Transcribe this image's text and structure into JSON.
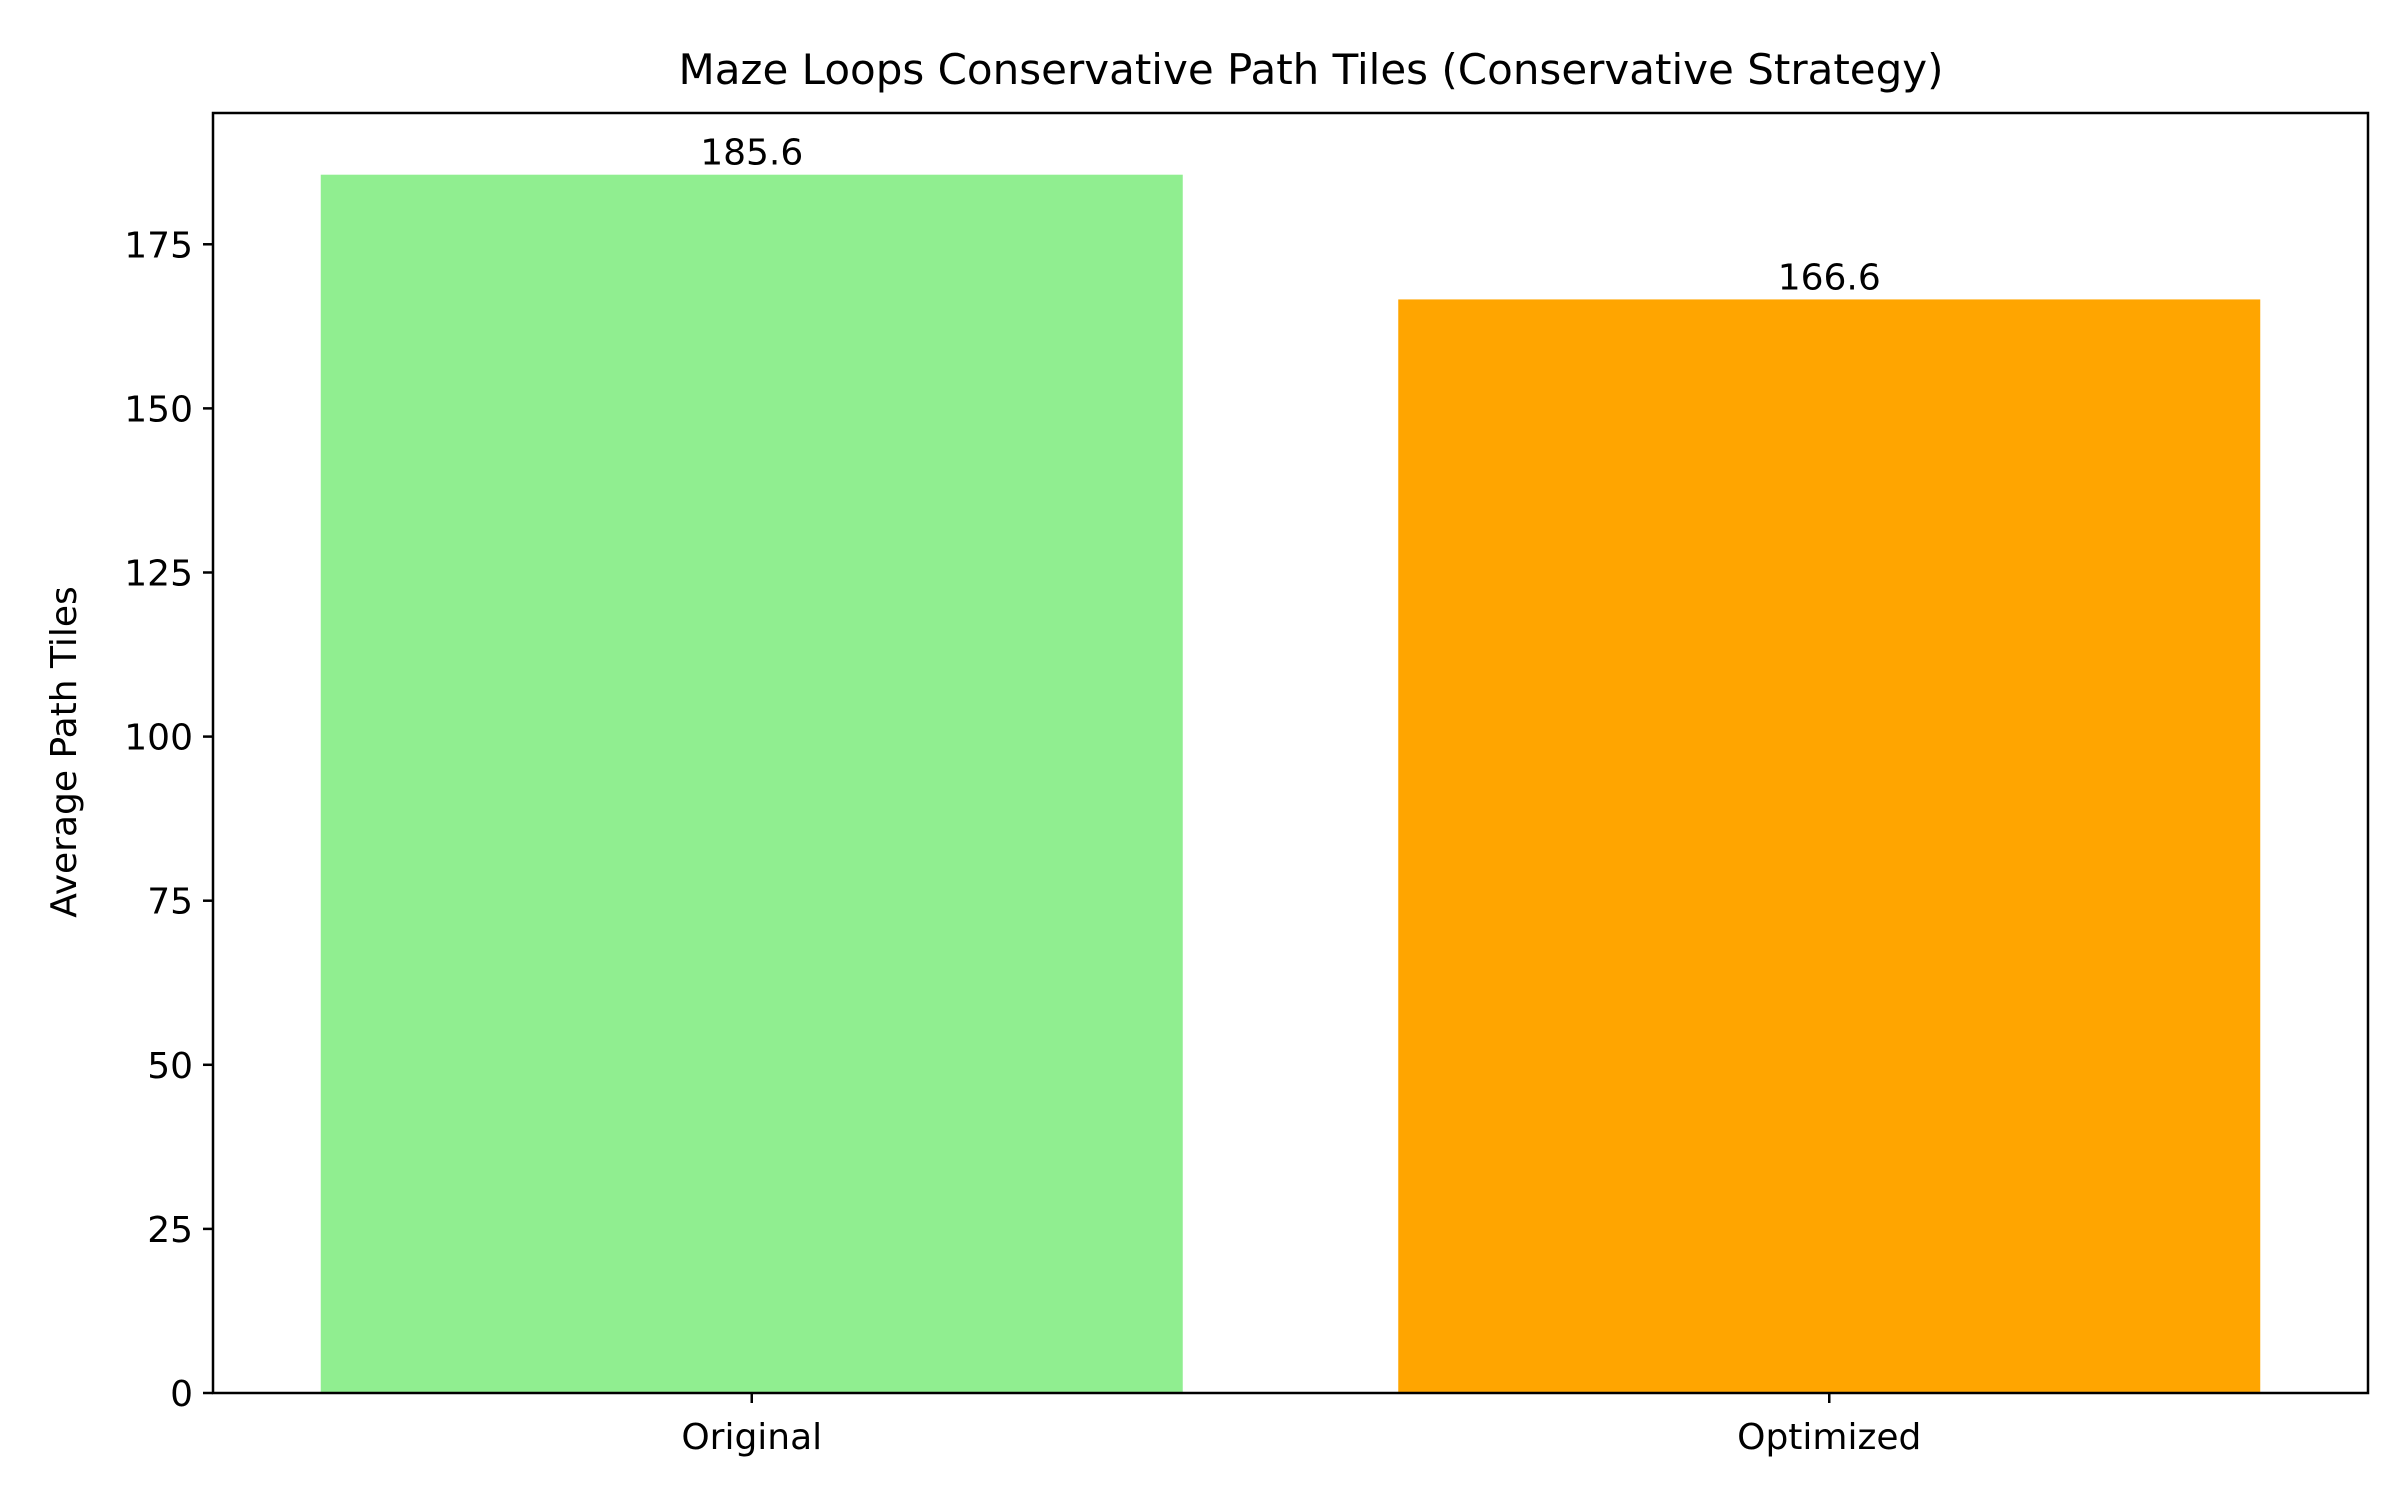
{
  "chart_data": {
    "type": "bar",
    "title": "Maze Loops Conservative Path Tiles (Conservative Strategy)",
    "xlabel": "",
    "ylabel": "Average Path Tiles",
    "categories": [
      "Original",
      "Optimized"
    ],
    "values": [
      185.6,
      166.6
    ],
    "value_labels": [
      "185.6",
      "166.6"
    ],
    "colors": [
      "#90ee90",
      "#ffa500"
    ],
    "ylim": [
      0,
      195
    ],
    "yticks": [
      0,
      25,
      50,
      75,
      100,
      125,
      150,
      175
    ],
    "grid": false,
    "legend": "none"
  }
}
